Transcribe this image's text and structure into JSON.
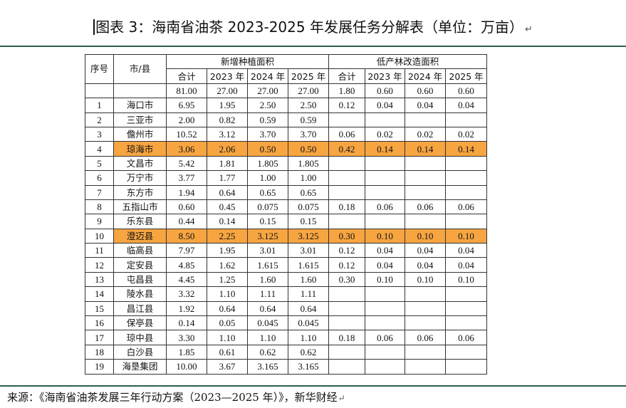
{
  "title": {
    "text": "图表 3：海南省油茶 2023-2025 年发展任务分解表（单位：万亩）",
    "return_mark": "↵"
  },
  "table": {
    "header": {
      "seq": "序号",
      "city": "市/县",
      "group_new": "新增种植面积",
      "group_low": "低产林改造面积",
      "sub_cols": [
        "合计",
        "2023 年",
        "2024 年",
        "2025 年",
        "合计",
        "2023 年",
        "2024 年",
        "2025 年"
      ]
    },
    "totals": [
      "81.00",
      "27.00",
      "27.00",
      "27.00",
      "1.80",
      "0.60",
      "0.60",
      "0.60"
    ],
    "rows": [
      {
        "no": "1",
        "city": "海口市",
        "vals": [
          "6.95",
          "1.95",
          "2.50",
          "2.50",
          "0.12",
          "0.04",
          "0.04",
          "0.04"
        ],
        "highlight": false
      },
      {
        "no": "2",
        "city": "三亚市",
        "vals": [
          "2.00",
          "0.82",
          "0.59",
          "0.59",
          "",
          "",
          "",
          ""
        ],
        "highlight": false
      },
      {
        "no": "3",
        "city": "儋州市",
        "vals": [
          "10.52",
          "3.12",
          "3.70",
          "3.70",
          "0.06",
          "0.02",
          "0.02",
          "0.02"
        ],
        "highlight": false
      },
      {
        "no": "4",
        "city": "琼海市",
        "vals": [
          "3.06",
          "2.06",
          "0.50",
          "0.50",
          "0.42",
          "0.14",
          "0.14",
          "0.14"
        ],
        "highlight": true
      },
      {
        "no": "5",
        "city": "文昌市",
        "vals": [
          "5.42",
          "1.81",
          "1.805",
          "1.805",
          "",
          "",
          "",
          ""
        ],
        "highlight": false
      },
      {
        "no": "6",
        "city": "万宁市",
        "vals": [
          "3.77",
          "1.77",
          "1.00",
          "1.00",
          "",
          "",
          "",
          ""
        ],
        "highlight": false
      },
      {
        "no": "7",
        "city": "东方市",
        "vals": [
          "1.94",
          "0.64",
          "0.65",
          "0.65",
          "",
          "",
          "",
          ""
        ],
        "highlight": false
      },
      {
        "no": "8",
        "city": "五指山市",
        "vals": [
          "0.60",
          "0.45",
          "0.075",
          "0.075",
          "0.18",
          "0.06",
          "0.06",
          "0.06"
        ],
        "highlight": false
      },
      {
        "no": "9",
        "city": "乐东县",
        "vals": [
          "0.44",
          "0.14",
          "0.15",
          "0.15",
          "",
          "",
          "",
          ""
        ],
        "highlight": false
      },
      {
        "no": "10",
        "city": "澄迈县",
        "vals": [
          "8.50",
          "2.25",
          "3.125",
          "3.125",
          "0.30",
          "0.10",
          "0.10",
          "0.10"
        ],
        "highlight": true
      },
      {
        "no": "11",
        "city": "临高县",
        "vals": [
          "7.97",
          "1.95",
          "3.01",
          "3.01",
          "0.12",
          "0.04",
          "0.04",
          "0.04"
        ],
        "highlight": false
      },
      {
        "no": "12",
        "city": "定安县",
        "vals": [
          "4.85",
          "1.62",
          "1.615",
          "1.615",
          "0.12",
          "0.04",
          "0.04",
          "0.04"
        ],
        "highlight": false
      },
      {
        "no": "13",
        "city": "屯昌县",
        "vals": [
          "4.45",
          "1.25",
          "1.60",
          "1.60",
          "0.30",
          "0.10",
          "0.10",
          "0.10"
        ],
        "highlight": false
      },
      {
        "no": "14",
        "city": "陵水县",
        "vals": [
          "3.32",
          "1.10",
          "1.11",
          "1.11",
          "",
          "",
          "",
          ""
        ],
        "highlight": false
      },
      {
        "no": "15",
        "city": "昌江县",
        "vals": [
          "1.92",
          "0.64",
          "0.64",
          "0.64",
          "",
          "",
          "",
          ""
        ],
        "highlight": false
      },
      {
        "no": "16",
        "city": "保亭县",
        "vals": [
          "0.14",
          "0.05",
          "0.045",
          "0.045",
          "",
          "",
          "",
          ""
        ],
        "highlight": false
      },
      {
        "no": "17",
        "city": "琼中县",
        "vals": [
          "3.30",
          "1.10",
          "1.10",
          "1.10",
          "0.18",
          "0.06",
          "0.06",
          "0.06"
        ],
        "highlight": false
      },
      {
        "no": "18",
        "city": "白沙县",
        "vals": [
          "1.85",
          "0.61",
          "0.62",
          "0.62",
          "",
          "",
          "",
          ""
        ],
        "highlight": false
      },
      {
        "no": "19",
        "city": "海垦集团",
        "vals": [
          "10.00",
          "3.67",
          "3.165",
          "3.165",
          "",
          "",
          "",
          ""
        ],
        "highlight": false
      }
    ]
  },
  "source": {
    "text": "来源：《海南省油茶发展三年行动方案（2023—2025 年）》，新华财经",
    "return_mark": "↵"
  },
  "colors": {
    "highlight": "#f7a541",
    "rule": "#2c5d4a"
  }
}
